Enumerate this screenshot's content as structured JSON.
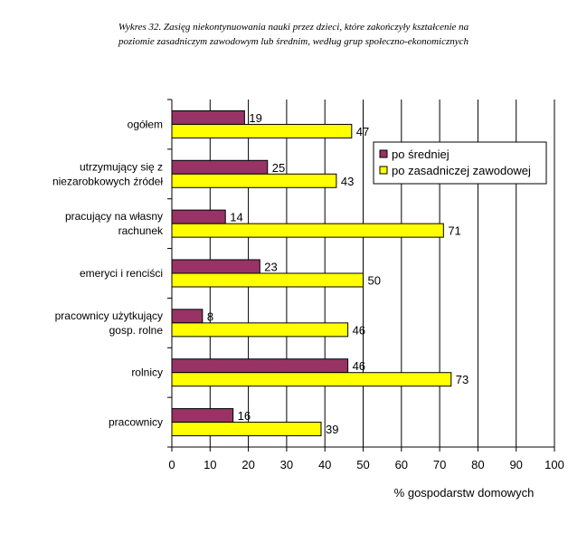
{
  "chart_data": {
    "type": "bar",
    "orientation": "horizontal",
    "title_lines": [
      "Wykres 32. Zasięg niekontynuowania nauki przez dzieci, które zakończyły kształcenie na",
      "poziomie zasadniczym zawodowym lub średnim, według grup społeczno-ekonomicznych"
    ],
    "categories": [
      [
        "ogółem"
      ],
      [
        "utrzymujący się z",
        "niezarobkowych źródeł"
      ],
      [
        "pracujący na własny",
        "rachunek"
      ],
      [
        "emeryci i renciści"
      ],
      [
        "pracownicy użytkujący",
        "gosp. rolne"
      ],
      [
        "rolnicy"
      ],
      [
        "pracownicy"
      ]
    ],
    "series": [
      {
        "name": "po średniej",
        "color": "#993366",
        "values": [
          19,
          25,
          14,
          23,
          8,
          46,
          16
        ]
      },
      {
        "name": "po zasadniczej zawodowej",
        "color": "#ffff00",
        "values": [
          47,
          43,
          71,
          50,
          46,
          73,
          39
        ]
      }
    ],
    "xlabel": "% gospodarstw domowych",
    "xlim": [
      0,
      100
    ],
    "xticks": [
      0,
      10,
      20,
      30,
      40,
      50,
      60,
      70,
      80,
      90,
      100
    ],
    "grid": "vertical",
    "legend_position": "top-right"
  }
}
